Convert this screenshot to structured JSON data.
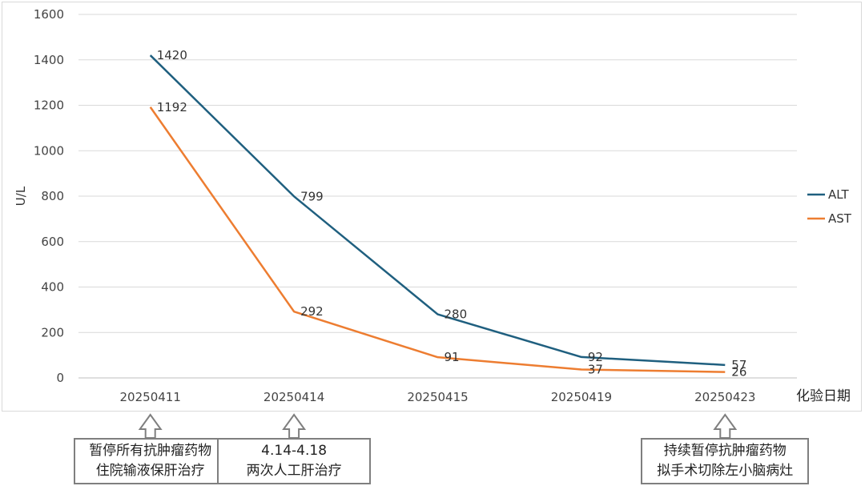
{
  "chart_data": {
    "type": "line",
    "title": "",
    "xlabel": "化验日期",
    "ylabel": "U/L",
    "ylim": [
      0,
      1600
    ],
    "yticks": [
      0,
      200,
      400,
      600,
      800,
      1000,
      1200,
      1400,
      1600
    ],
    "categories": [
      "20250411",
      "20250414",
      "20250415",
      "20250419",
      "20250423"
    ],
    "grid": true,
    "legend_position": "right",
    "series": [
      {
        "name": "ALT",
        "color": "#1f5f7f",
        "values": [
          1420,
          799,
          280,
          92,
          57
        ]
      },
      {
        "name": "AST",
        "color": "#ed7d31",
        "values": [
          1192,
          292,
          91,
          37,
          26
        ]
      }
    ]
  },
  "annotations": [
    {
      "category_index": 0,
      "lines": [
        "暂停所有抗肿瘤药物",
        "住院输液保肝治疗"
      ]
    },
    {
      "category_index": 1,
      "lines": [
        "4.14-4.18",
        "两次人工肝治疗"
      ]
    },
    {
      "category_index": 4,
      "lines": [
        "持续暂停抗肿瘤药物",
        "拟手术切除左小脑病灶"
      ]
    }
  ]
}
